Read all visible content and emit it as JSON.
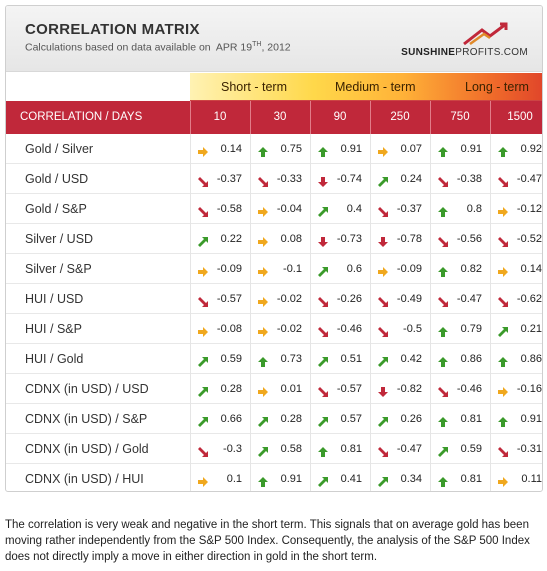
{
  "header": {
    "title": "CORRELATION MATRIX",
    "subtitle_prefix": "Calculations based on data available on",
    "subtitle_date_main": "APR 19",
    "subtitle_date_sup": "TH",
    "subtitle_date_year": ", 2012",
    "logo_bold": "SUNSHINE",
    "logo_light": "PROFITS.COM"
  },
  "terms": [
    "Short - term",
    "Medium - term",
    "Long - term"
  ],
  "columns": {
    "first": "CORRELATION / DAYS",
    "days": [
      "10",
      "30",
      "90",
      "250",
      "750",
      "1500"
    ]
  },
  "colors": {
    "up": "#3a9a2a",
    "down": "#c0283a",
    "flat": "#f0a81e",
    "header_red": "#c0283a"
  },
  "rows": [
    {
      "label": "Gold / Silver",
      "cells": [
        {
          "v": "0.14",
          "d": "flat"
        },
        {
          "v": "0.75",
          "d": "up"
        },
        {
          "v": "0.91",
          "d": "up"
        },
        {
          "v": "0.07",
          "d": "flat"
        },
        {
          "v": "0.91",
          "d": "up"
        },
        {
          "v": "0.92",
          "d": "up"
        }
      ]
    },
    {
      "label": "Gold / USD",
      "cells": [
        {
          "v": "-0.37",
          "d": "down-diag"
        },
        {
          "v": "-0.33",
          "d": "down-diag"
        },
        {
          "v": "-0.74",
          "d": "down"
        },
        {
          "v": "0.24",
          "d": "up-diag"
        },
        {
          "v": "-0.38",
          "d": "down-diag"
        },
        {
          "v": "-0.47",
          "d": "down-diag"
        }
      ]
    },
    {
      "label": "Gold / S&P",
      "cells": [
        {
          "v": "-0.58",
          "d": "down-diag"
        },
        {
          "v": "-0.04",
          "d": "flat"
        },
        {
          "v": "0.4",
          "d": "up-diag"
        },
        {
          "v": "-0.37",
          "d": "down-diag"
        },
        {
          "v": "0.8",
          "d": "up"
        },
        {
          "v": "-0.12",
          "d": "flat"
        }
      ]
    },
    {
      "label": "Silver / USD",
      "cells": [
        {
          "v": "0.22",
          "d": "up-diag"
        },
        {
          "v": "0.08",
          "d": "flat"
        },
        {
          "v": "-0.73",
          "d": "down"
        },
        {
          "v": "-0.78",
          "d": "down"
        },
        {
          "v": "-0.56",
          "d": "down-diag"
        },
        {
          "v": "-0.52",
          "d": "down-diag"
        }
      ]
    },
    {
      "label": "Silver / S&P",
      "cells": [
        {
          "v": "-0.09",
          "d": "flat"
        },
        {
          "v": "-0.1",
          "d": "flat"
        },
        {
          "v": "0.6",
          "d": "up-diag"
        },
        {
          "v": "-0.09",
          "d": "flat"
        },
        {
          "v": "0.82",
          "d": "up"
        },
        {
          "v": "0.14",
          "d": "flat"
        }
      ]
    },
    {
      "label": "HUI / USD",
      "cells": [
        {
          "v": "-0.57",
          "d": "down-diag"
        },
        {
          "v": "-0.02",
          "d": "flat"
        },
        {
          "v": "-0.26",
          "d": "down-diag"
        },
        {
          "v": "-0.49",
          "d": "down-diag"
        },
        {
          "v": "-0.47",
          "d": "down-diag"
        },
        {
          "v": "-0.62",
          "d": "down-diag"
        }
      ]
    },
    {
      "label": "HUI / S&P",
      "cells": [
        {
          "v": "-0.08",
          "d": "flat"
        },
        {
          "v": "-0.02",
          "d": "flat"
        },
        {
          "v": "-0.46",
          "d": "down-diag"
        },
        {
          "v": "-0.5",
          "d": "down-diag"
        },
        {
          "v": "0.79",
          "d": "up"
        },
        {
          "v": "0.21",
          "d": "up-diag"
        }
      ]
    },
    {
      "label": "HUI / Gold",
      "cells": [
        {
          "v": "0.59",
          "d": "up-diag"
        },
        {
          "v": "0.73",
          "d": "up"
        },
        {
          "v": "0.51",
          "d": "up-diag"
        },
        {
          "v": "0.42",
          "d": "up-diag"
        },
        {
          "v": "0.86",
          "d": "up"
        },
        {
          "v": "0.86",
          "d": "up"
        }
      ]
    },
    {
      "label": "CDNX (in USD) / USD",
      "cells": [
        {
          "v": "0.28",
          "d": "up-diag"
        },
        {
          "v": "0.01",
          "d": "flat"
        },
        {
          "v": "-0.57",
          "d": "down-diag"
        },
        {
          "v": "-0.82",
          "d": "down"
        },
        {
          "v": "-0.46",
          "d": "down-diag"
        },
        {
          "v": "-0.16",
          "d": "flat"
        }
      ]
    },
    {
      "label": "CDNX (in USD) / S&P",
      "cells": [
        {
          "v": "0.66",
          "d": "up-diag"
        },
        {
          "v": "0.28",
          "d": "up-diag"
        },
        {
          "v": "0.57",
          "d": "up-diag"
        },
        {
          "v": "0.26",
          "d": "up-diag"
        },
        {
          "v": "0.81",
          "d": "up"
        },
        {
          "v": "0.91",
          "d": "up"
        }
      ]
    },
    {
      "label": "CDNX (in USD) / Gold",
      "cells": [
        {
          "v": "-0.3",
          "d": "down-diag"
        },
        {
          "v": "0.58",
          "d": "up-diag"
        },
        {
          "v": "0.81",
          "d": "up"
        },
        {
          "v": "-0.47",
          "d": "down-diag"
        },
        {
          "v": "0.59",
          "d": "up-diag"
        },
        {
          "v": "-0.31",
          "d": "down-diag"
        }
      ]
    },
    {
      "label": "CDNX (in USD) / HUI",
      "cells": [
        {
          "v": "0.1",
          "d": "flat"
        },
        {
          "v": "0.91",
          "d": "up"
        },
        {
          "v": "0.41",
          "d": "up-diag"
        },
        {
          "v": "0.34",
          "d": "up-diag"
        },
        {
          "v": "0.81",
          "d": "up"
        },
        {
          "v": "0.11",
          "d": "flat"
        }
      ]
    }
  ],
  "footer": "The correlation is very weak and negative in the short term. This signals that on average gold has been moving rather independently from the S&P 500 Index. Consequently, the analysis of the S&P 500 Index does not directly imply a move in either direction in gold in the short term."
}
